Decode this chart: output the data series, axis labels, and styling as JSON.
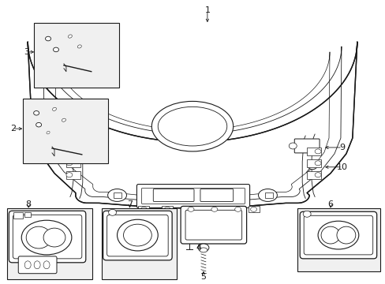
{
  "bg_color": "#ffffff",
  "line_color": "#1a1a1a",
  "box_fill": "#f0f0f0",
  "fig_width": 4.89,
  "fig_height": 3.6,
  "dpi": 100
}
